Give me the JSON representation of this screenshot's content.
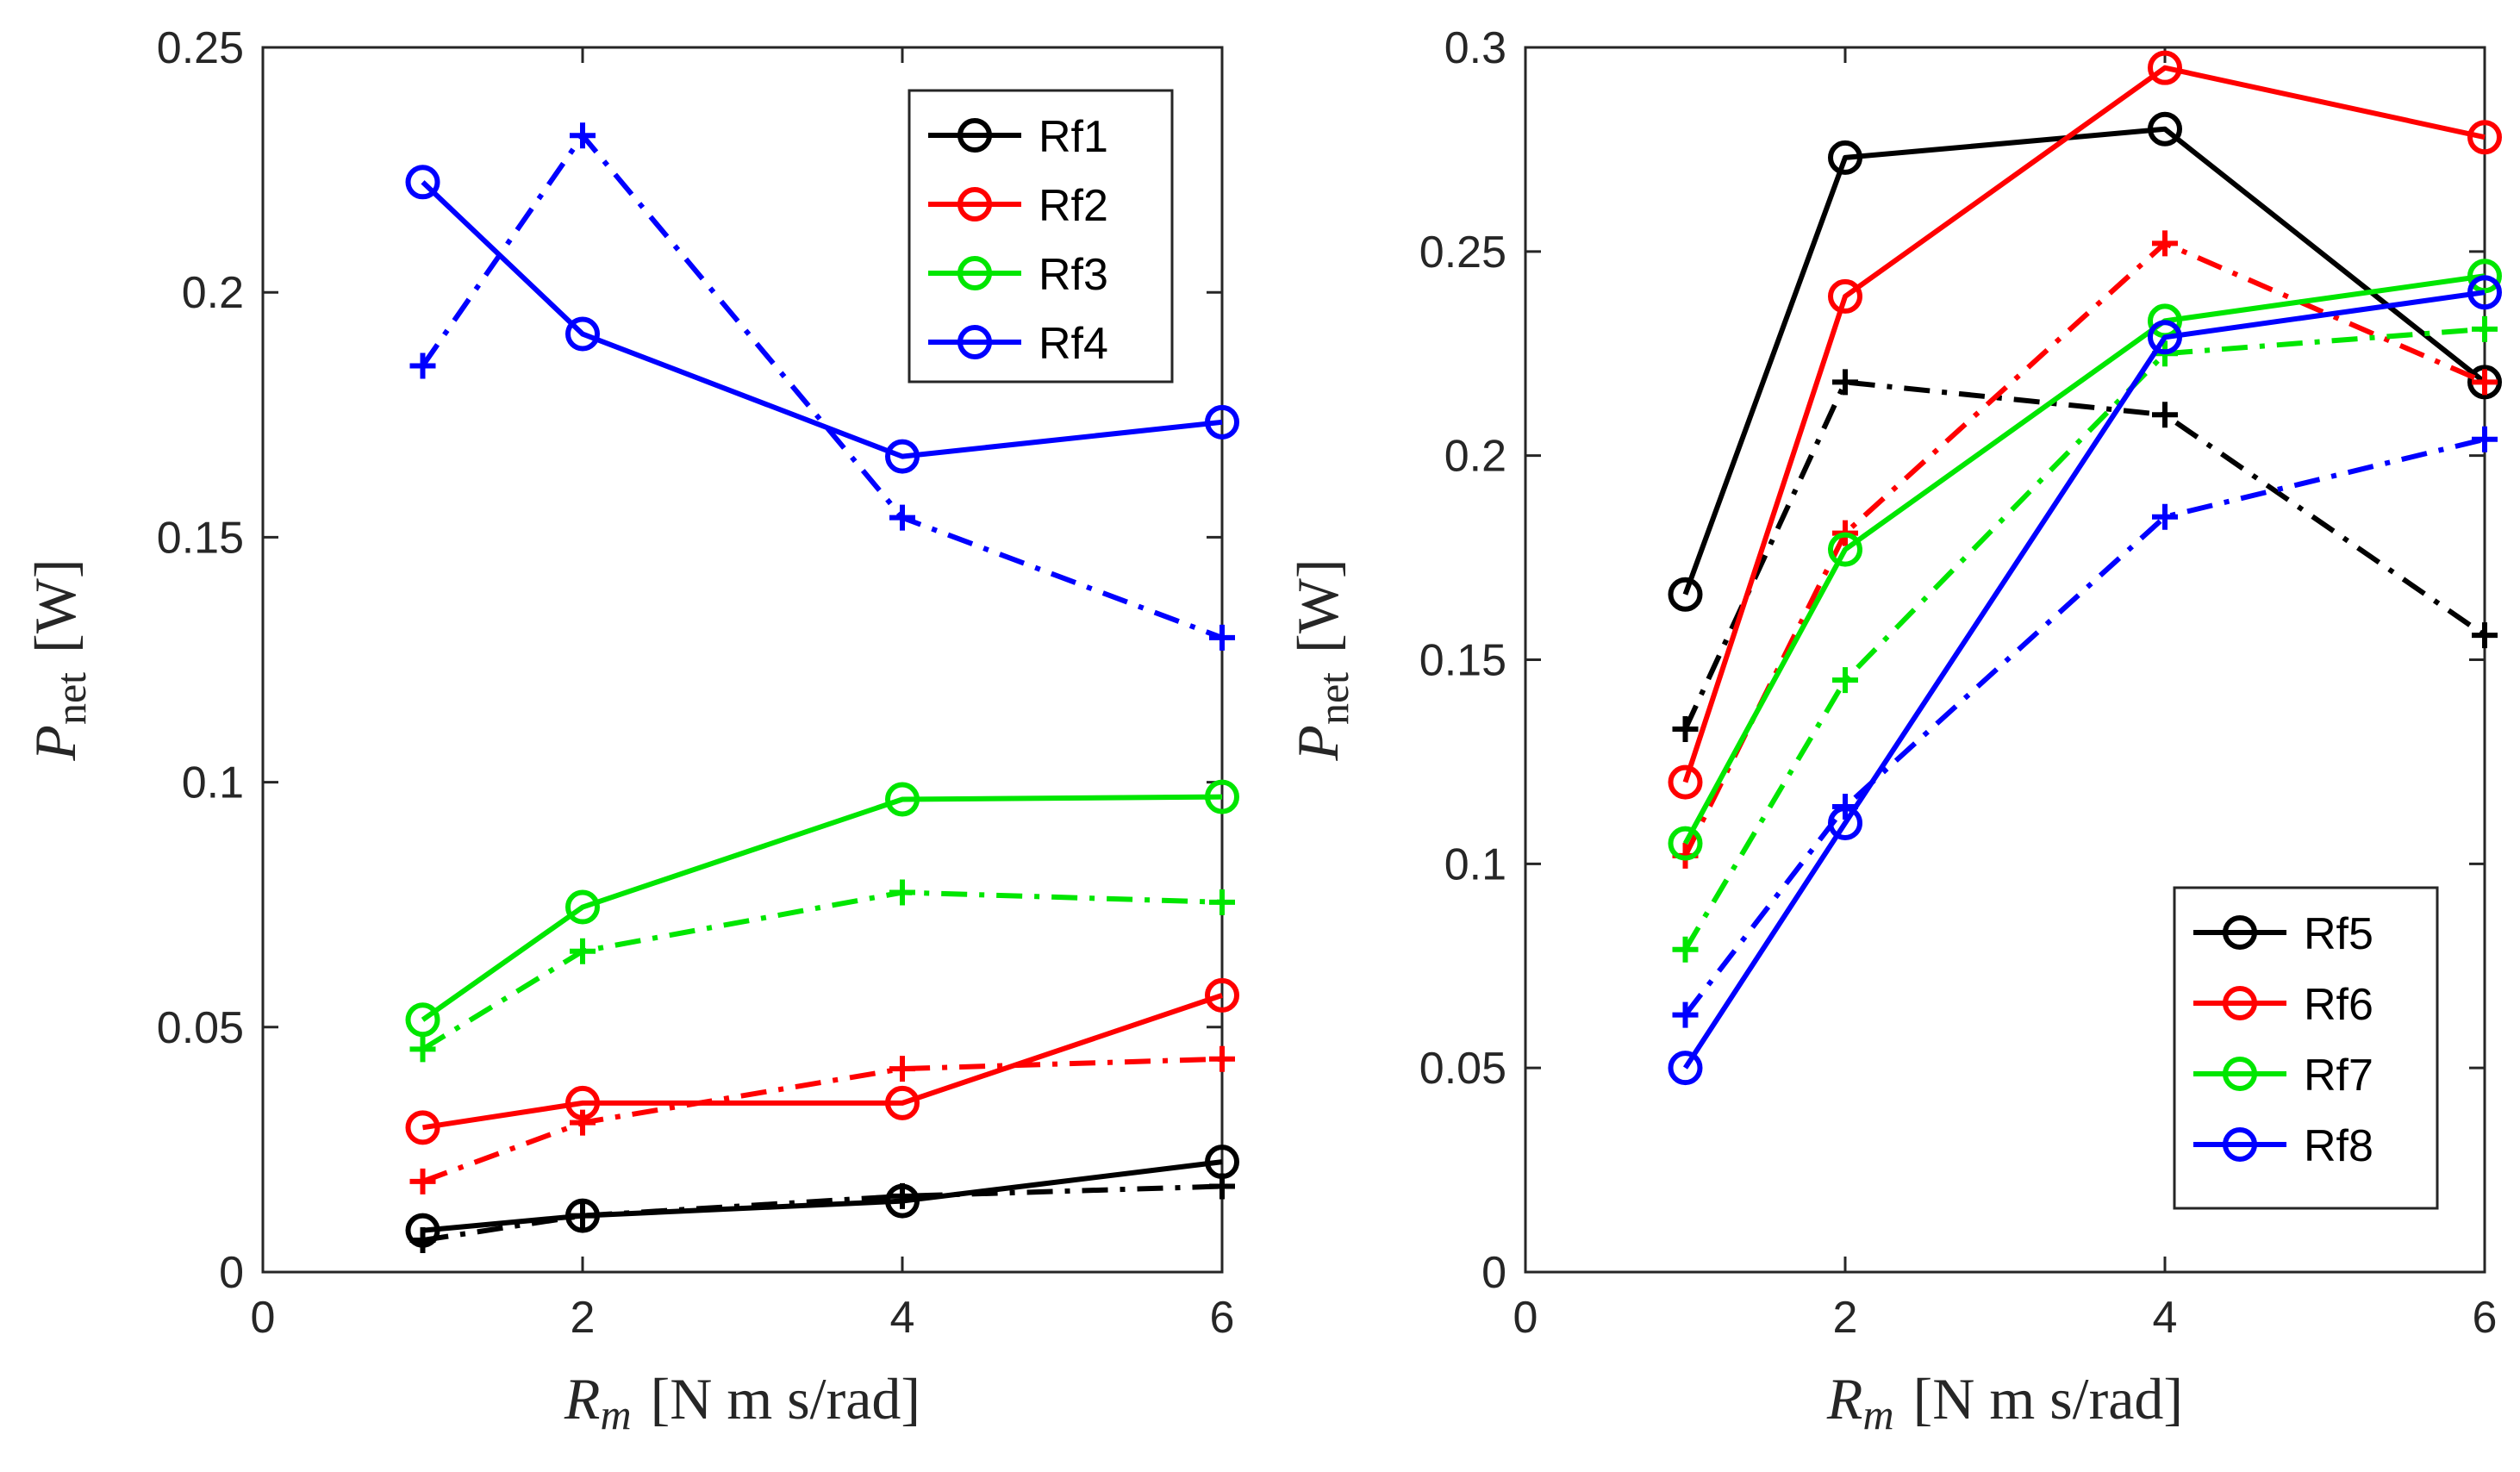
{
  "chart_data": [
    {
      "type": "line",
      "xlabel": {
        "symbol": "R",
        "sub": "m",
        "unit": "[N m s/rad]"
      },
      "ylabel": {
        "symbol": "P",
        "sub": "net",
        "unit": "[W]"
      },
      "xlim": [
        0,
        6
      ],
      "ylim": [
        0,
        0.25
      ],
      "xticks": [
        "0",
        "2",
        "4",
        "6"
      ],
      "yticks": [
        "0",
        "0.05",
        "0.1",
        "0.15",
        "0.2",
        "0.25"
      ],
      "legend_position": "top-right",
      "x": [
        1,
        2,
        4,
        6
      ],
      "series": [
        {
          "name": "Rf1",
          "color": "#000000",
          "solid": [
            0.0085,
            0.0115,
            0.0145,
            0.0225
          ],
          "dashdot": [
            0.0065,
            0.0115,
            0.0155,
            0.0175
          ]
        },
        {
          "name": "Rf2",
          "color": "#ff0000",
          "solid": [
            0.0295,
            0.0345,
            0.0345,
            0.0565
          ],
          "dashdot": [
            0.0185,
            0.0305,
            0.0415,
            0.0435
          ]
        },
        {
          "name": "Rf3",
          "color": "#00e600",
          "solid": [
            0.0515,
            0.0745,
            0.0965,
            0.097
          ],
          "dashdot": [
            0.0455,
            0.0655,
            0.0775,
            0.0755
          ]
        },
        {
          "name": "Rf4",
          "color": "#0000ff",
          "solid": [
            0.2225,
            0.1915,
            0.1665,
            0.1735
          ],
          "dashdot": [
            0.185,
            0.232,
            0.154,
            0.1295
          ]
        }
      ]
    },
    {
      "type": "line",
      "xlabel": {
        "symbol": "R",
        "sub": "m",
        "unit": "[N m s/rad]"
      },
      "ylabel": {
        "symbol": "P",
        "sub": "net",
        "unit": "[W]"
      },
      "xlim": [
        0,
        6
      ],
      "ylim": [
        0,
        0.3
      ],
      "xticks": [
        "0",
        "2",
        "4",
        "6"
      ],
      "yticks": [
        "0",
        "0.05",
        "0.1",
        "0.15",
        "0.2",
        "0.25",
        "0.3"
      ],
      "legend_position": "bottom-right",
      "x": [
        1,
        2,
        4,
        6
      ],
      "series": [
        {
          "name": "Rf5",
          "color": "#000000",
          "solid": [
            0.166,
            0.273,
            0.28,
            0.218
          ],
          "dashdot": [
            0.133,
            0.218,
            0.21,
            0.156
          ]
        },
        {
          "name": "Rf6",
          "color": "#ff0000",
          "solid": [
            0.12,
            0.239,
            0.295,
            0.278
          ],
          "dashdot": [
            0.102,
            0.181,
            0.252,
            0.218
          ]
        },
        {
          "name": "Rf7",
          "color": "#00e600",
          "solid": [
            0.105,
            0.177,
            0.233,
            0.244
          ],
          "dashdot": [
            0.079,
            0.145,
            0.225,
            0.231
          ]
        },
        {
          "name": "Rf8",
          "color": "#0000ff",
          "solid": [
            0.05,
            0.11,
            0.229,
            0.24
          ],
          "dashdot": [
            0.063,
            0.114,
            0.185,
            0.204
          ]
        }
      ]
    }
  ]
}
